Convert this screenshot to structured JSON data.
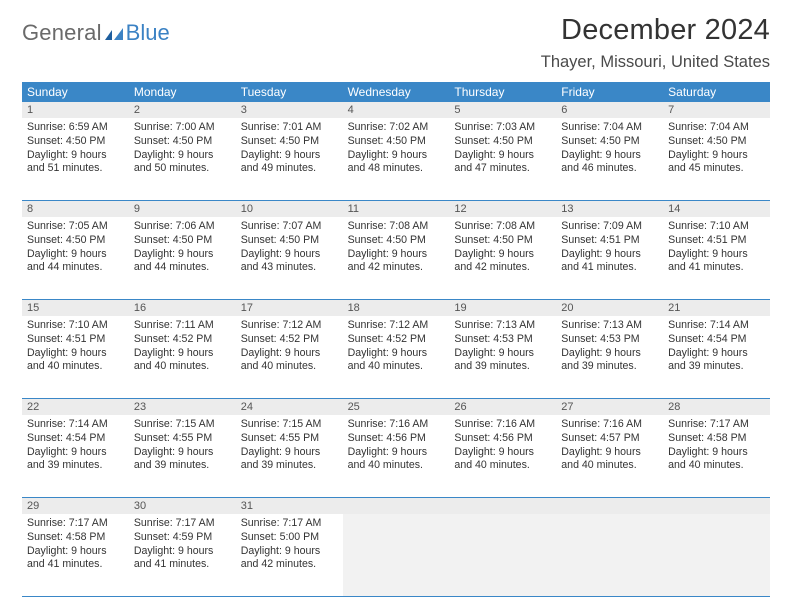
{
  "colors": {
    "header_bg": "#3a87c7",
    "header_text": "#ffffff",
    "daynum_bg": "#ececec",
    "daynum_text": "#555555",
    "divider": "#3a87c7",
    "body_text": "#333333",
    "empty_bg": "#f2f2f2",
    "logo_gray": "#6a6a6a",
    "logo_blue": "#3b82c4"
  },
  "logo": {
    "word1": "General",
    "word2": "Blue"
  },
  "title": "December 2024",
  "location": "Thayer, Missouri, United States",
  "dow": [
    "Sunday",
    "Monday",
    "Tuesday",
    "Wednesday",
    "Thursday",
    "Friday",
    "Saturday"
  ],
  "weeks": [
    [
      {
        "n": "1",
        "sr": "Sunrise: 6:59 AM",
        "ss": "Sunset: 4:50 PM",
        "d1": "Daylight: 9 hours",
        "d2": "and 51 minutes."
      },
      {
        "n": "2",
        "sr": "Sunrise: 7:00 AM",
        "ss": "Sunset: 4:50 PM",
        "d1": "Daylight: 9 hours",
        "d2": "and 50 minutes."
      },
      {
        "n": "3",
        "sr": "Sunrise: 7:01 AM",
        "ss": "Sunset: 4:50 PM",
        "d1": "Daylight: 9 hours",
        "d2": "and 49 minutes."
      },
      {
        "n": "4",
        "sr": "Sunrise: 7:02 AM",
        "ss": "Sunset: 4:50 PM",
        "d1": "Daylight: 9 hours",
        "d2": "and 48 minutes."
      },
      {
        "n": "5",
        "sr": "Sunrise: 7:03 AM",
        "ss": "Sunset: 4:50 PM",
        "d1": "Daylight: 9 hours",
        "d2": "and 47 minutes."
      },
      {
        "n": "6",
        "sr": "Sunrise: 7:04 AM",
        "ss": "Sunset: 4:50 PM",
        "d1": "Daylight: 9 hours",
        "d2": "and 46 minutes."
      },
      {
        "n": "7",
        "sr": "Sunrise: 7:04 AM",
        "ss": "Sunset: 4:50 PM",
        "d1": "Daylight: 9 hours",
        "d2": "and 45 minutes."
      }
    ],
    [
      {
        "n": "8",
        "sr": "Sunrise: 7:05 AM",
        "ss": "Sunset: 4:50 PM",
        "d1": "Daylight: 9 hours",
        "d2": "and 44 minutes."
      },
      {
        "n": "9",
        "sr": "Sunrise: 7:06 AM",
        "ss": "Sunset: 4:50 PM",
        "d1": "Daylight: 9 hours",
        "d2": "and 44 minutes."
      },
      {
        "n": "10",
        "sr": "Sunrise: 7:07 AM",
        "ss": "Sunset: 4:50 PM",
        "d1": "Daylight: 9 hours",
        "d2": "and 43 minutes."
      },
      {
        "n": "11",
        "sr": "Sunrise: 7:08 AM",
        "ss": "Sunset: 4:50 PM",
        "d1": "Daylight: 9 hours",
        "d2": "and 42 minutes."
      },
      {
        "n": "12",
        "sr": "Sunrise: 7:08 AM",
        "ss": "Sunset: 4:50 PM",
        "d1": "Daylight: 9 hours",
        "d2": "and 42 minutes."
      },
      {
        "n": "13",
        "sr": "Sunrise: 7:09 AM",
        "ss": "Sunset: 4:51 PM",
        "d1": "Daylight: 9 hours",
        "d2": "and 41 minutes."
      },
      {
        "n": "14",
        "sr": "Sunrise: 7:10 AM",
        "ss": "Sunset: 4:51 PM",
        "d1": "Daylight: 9 hours",
        "d2": "and 41 minutes."
      }
    ],
    [
      {
        "n": "15",
        "sr": "Sunrise: 7:10 AM",
        "ss": "Sunset: 4:51 PM",
        "d1": "Daylight: 9 hours",
        "d2": "and 40 minutes."
      },
      {
        "n": "16",
        "sr": "Sunrise: 7:11 AM",
        "ss": "Sunset: 4:52 PM",
        "d1": "Daylight: 9 hours",
        "d2": "and 40 minutes."
      },
      {
        "n": "17",
        "sr": "Sunrise: 7:12 AM",
        "ss": "Sunset: 4:52 PM",
        "d1": "Daylight: 9 hours",
        "d2": "and 40 minutes."
      },
      {
        "n": "18",
        "sr": "Sunrise: 7:12 AM",
        "ss": "Sunset: 4:52 PM",
        "d1": "Daylight: 9 hours",
        "d2": "and 40 minutes."
      },
      {
        "n": "19",
        "sr": "Sunrise: 7:13 AM",
        "ss": "Sunset: 4:53 PM",
        "d1": "Daylight: 9 hours",
        "d2": "and 39 minutes."
      },
      {
        "n": "20",
        "sr": "Sunrise: 7:13 AM",
        "ss": "Sunset: 4:53 PM",
        "d1": "Daylight: 9 hours",
        "d2": "and 39 minutes."
      },
      {
        "n": "21",
        "sr": "Sunrise: 7:14 AM",
        "ss": "Sunset: 4:54 PM",
        "d1": "Daylight: 9 hours",
        "d2": "and 39 minutes."
      }
    ],
    [
      {
        "n": "22",
        "sr": "Sunrise: 7:14 AM",
        "ss": "Sunset: 4:54 PM",
        "d1": "Daylight: 9 hours",
        "d2": "and 39 minutes."
      },
      {
        "n": "23",
        "sr": "Sunrise: 7:15 AM",
        "ss": "Sunset: 4:55 PM",
        "d1": "Daylight: 9 hours",
        "d2": "and 39 minutes."
      },
      {
        "n": "24",
        "sr": "Sunrise: 7:15 AM",
        "ss": "Sunset: 4:55 PM",
        "d1": "Daylight: 9 hours",
        "d2": "and 39 minutes."
      },
      {
        "n": "25",
        "sr": "Sunrise: 7:16 AM",
        "ss": "Sunset: 4:56 PM",
        "d1": "Daylight: 9 hours",
        "d2": "and 40 minutes."
      },
      {
        "n": "26",
        "sr": "Sunrise: 7:16 AM",
        "ss": "Sunset: 4:56 PM",
        "d1": "Daylight: 9 hours",
        "d2": "and 40 minutes."
      },
      {
        "n": "27",
        "sr": "Sunrise: 7:16 AM",
        "ss": "Sunset: 4:57 PM",
        "d1": "Daylight: 9 hours",
        "d2": "and 40 minutes."
      },
      {
        "n": "28",
        "sr": "Sunrise: 7:17 AM",
        "ss": "Sunset: 4:58 PM",
        "d1": "Daylight: 9 hours",
        "d2": "and 40 minutes."
      }
    ],
    [
      {
        "n": "29",
        "sr": "Sunrise: 7:17 AM",
        "ss": "Sunset: 4:58 PM",
        "d1": "Daylight: 9 hours",
        "d2": "and 41 minutes."
      },
      {
        "n": "30",
        "sr": "Sunrise: 7:17 AM",
        "ss": "Sunset: 4:59 PM",
        "d1": "Daylight: 9 hours",
        "d2": "and 41 minutes."
      },
      {
        "n": "31",
        "sr": "Sunrise: 7:17 AM",
        "ss": "Sunset: 5:00 PM",
        "d1": "Daylight: 9 hours",
        "d2": "and 42 minutes."
      },
      null,
      null,
      null,
      null
    ]
  ]
}
